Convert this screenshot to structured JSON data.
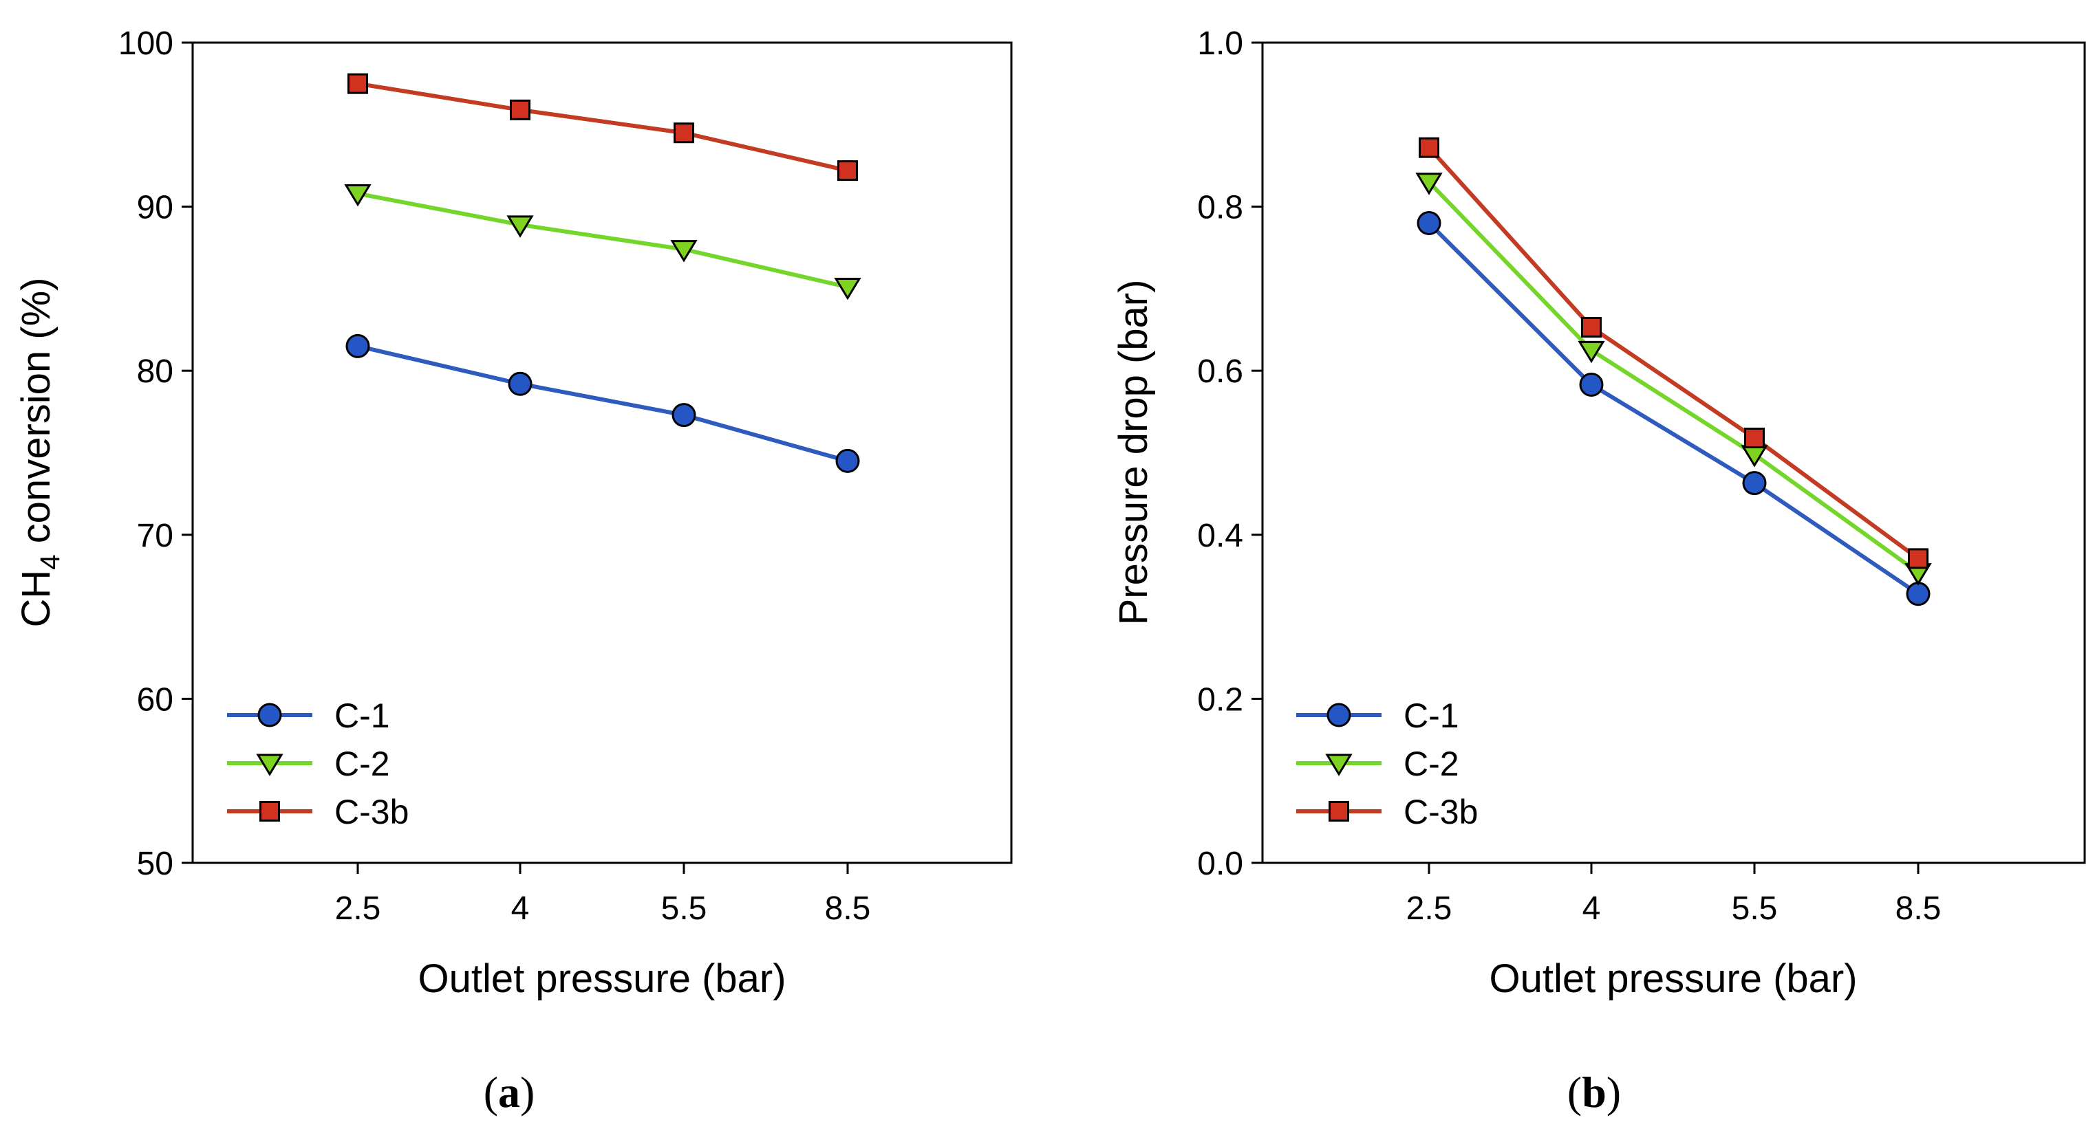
{
  "chart_data": [
    {
      "type": "line",
      "panel_label": "(a)",
      "panel_letter": "a",
      "title": "",
      "xlabel": "Outlet pressure (bar)",
      "ylabel_main": "CH",
      "ylabel_sub": "4",
      "ylabel_rest": " conversion (%)",
      "categories": [
        "2.5",
        "4",
        "5.5",
        "8.5"
      ],
      "ylim": [
        50,
        100
      ],
      "yticks": [
        "50",
        "60",
        "70",
        "80",
        "90",
        "100"
      ],
      "legend_position": "bottom-left",
      "series": [
        {
          "name": "C-1",
          "marker": "circle",
          "color": "#2457c5",
          "line_color": "#2e5bbd",
          "values": [
            81.5,
            79.2,
            77.3,
            74.5
          ]
        },
        {
          "name": "C-2",
          "marker": "triangle-down",
          "color": "#7ed321",
          "line_color": "#74d62a",
          "values": [
            90.8,
            88.9,
            87.4,
            85.1
          ]
        },
        {
          "name": "C-3b",
          "marker": "square",
          "color": "#d0321f",
          "line_color": "#c23b22",
          "values": [
            97.5,
            95.9,
            94.5,
            92.2
          ]
        }
      ]
    },
    {
      "type": "line",
      "panel_label": "(b)",
      "panel_letter": "b",
      "title": "",
      "xlabel": "Outlet pressure (bar)",
      "ylabel": "Pressure drop (bar)",
      "categories": [
        "2.5",
        "4",
        "5.5",
        "8.5"
      ],
      "ylim": [
        0.0,
        1.0
      ],
      "yticks": [
        "0.0",
        "0.2",
        "0.4",
        "0.6",
        "0.8",
        "1.0"
      ],
      "legend_position": "bottom-left",
      "series": [
        {
          "name": "C-1",
          "marker": "circle",
          "color": "#2457c5",
          "line_color": "#2e5bbd",
          "values": [
            0.78,
            0.583,
            0.463,
            0.328
          ]
        },
        {
          "name": "C-2",
          "marker": "triangle-down",
          "color": "#7ed321",
          "line_color": "#74d62a",
          "values": [
            0.83,
            0.625,
            0.498,
            0.354
          ]
        },
        {
          "name": "C-3b",
          "marker": "square",
          "color": "#d0321f",
          "line_color": "#c23b22",
          "values": [
            0.872,
            0.653,
            0.518,
            0.371
          ]
        }
      ]
    }
  ]
}
